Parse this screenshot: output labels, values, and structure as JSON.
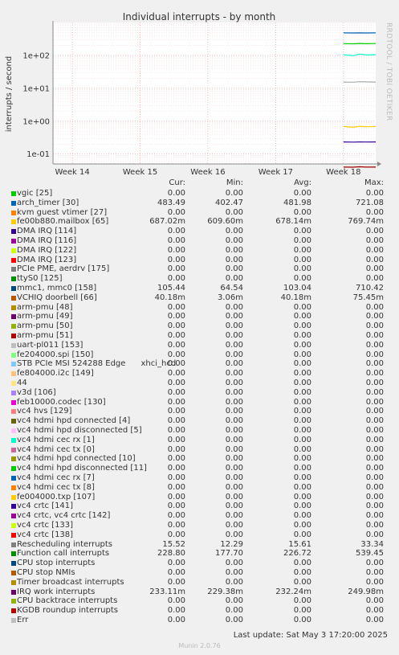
{
  "chart_data": {
    "type": "line",
    "title": "Individual interrupts - by month",
    "ylabel": "interrupts / second",
    "yscale": "log",
    "ylim": [
      0.05,
      1000
    ],
    "yticks": [
      "1e-01",
      "1e+00",
      "1e+01",
      "1e+02"
    ],
    "ytick_values": [
      0.1,
      1,
      10,
      100
    ],
    "xticks": [
      "Week 14",
      "Week 15",
      "Week 16",
      "Week 17",
      "Week 18"
    ],
    "xtick_positions": [
      0.06,
      0.27,
      0.48,
      0.69,
      0.9
    ],
    "x_range": [
      0,
      1
    ],
    "grid": true,
    "series": [
      {
        "name": "arch_timer [30]",
        "color": "#0066B3",
        "x": [
          0.9,
          0.93,
          0.95,
          0.97,
          1.0
        ],
        "values": [
          483,
          480,
          485,
          482,
          483
        ]
      },
      {
        "name": "Function call interrupts",
        "color": "#00CC00",
        "x": [
          0.9,
          0.93,
          0.95,
          0.97,
          1.0
        ],
        "values": [
          228,
          225,
          230,
          227,
          229
        ]
      },
      {
        "name": "mmc1, mmc0 [158]",
        "color": "#00FFCC",
        "x": [
          0.9,
          0.93,
          0.95,
          0.97,
          1.0
        ],
        "values": [
          105,
          98,
          110,
          103,
          105
        ]
      },
      {
        "name": "Rescheduling interrupts",
        "color": "#AAAAAA",
        "x": [
          0.9,
          0.93,
          0.95,
          0.97,
          1.0
        ],
        "values": [
          15.5,
          15.3,
          15.8,
          15.6,
          15.5
        ]
      },
      {
        "name": "fe00b880.mailbox [65]",
        "color": "#FFCC00",
        "x": [
          0.9,
          0.93,
          0.95,
          0.97,
          1.0
        ],
        "values": [
          0.687,
          0.65,
          0.7,
          0.678,
          0.687
        ]
      },
      {
        "name": "IRQ work interrupts",
        "color": "#330099",
        "x": [
          0.9,
          0.93,
          0.95,
          0.97,
          1.0
        ],
        "values": [
          0.233,
          0.231,
          0.234,
          0.232,
          0.233
        ]
      },
      {
        "name": "VCHIQ doorbell [66]",
        "color": "#990000",
        "x": [
          0.9,
          0.93,
          0.95,
          0.97,
          1.0
        ],
        "values": [
          0.0402,
          0.04,
          0.041,
          0.0402,
          0.0402
        ]
      }
    ]
  },
  "side_label": "RRDTOOL / TOBI OETIKER",
  "legend": {
    "headers": [
      "Cur:",
      "Min:",
      "Avg:",
      "Max:"
    ],
    "rows": [
      {
        "name": "vgic [25]",
        "color": "#00CC00",
        "cur": "0.00",
        "min": "0.00",
        "avg": "0.00",
        "max": "0.00"
      },
      {
        "name": "arch_timer [30]",
        "color": "#0066B3",
        "cur": "483.49",
        "min": "402.47",
        "avg": "481.98",
        "max": "721.08"
      },
      {
        "name": "kvm guest vtimer [27]",
        "color": "#FF8000",
        "cur": "0.00",
        "min": "0.00",
        "avg": "0.00",
        "max": "0.00"
      },
      {
        "name": "fe00b880.mailbox [65]",
        "color": "#FFCC00",
        "cur": "687.02m",
        "min": "609.60m",
        "avg": "678.14m",
        "max": "769.74m"
      },
      {
        "name": "DMA IRQ [114]",
        "color": "#330099",
        "cur": "0.00",
        "min": "0.00",
        "avg": "0.00",
        "max": "0.00"
      },
      {
        "name": "DMA IRQ [116]",
        "color": "#990099",
        "cur": "0.00",
        "min": "0.00",
        "avg": "0.00",
        "max": "0.00"
      },
      {
        "name": "DMA IRQ [122]",
        "color": "#CCFF00",
        "cur": "0.00",
        "min": "0.00",
        "avg": "0.00",
        "max": "0.00"
      },
      {
        "name": "DMA IRQ [123]",
        "color": "#FF0000",
        "cur": "0.00",
        "min": "0.00",
        "avg": "0.00",
        "max": "0.00"
      },
      {
        "name": "PCIe PME, aerdrv [175]",
        "color": "#808080",
        "cur": "0.00",
        "min": "0.00",
        "avg": "0.00",
        "max": "0.00"
      },
      {
        "name": "ttyS0 [125]",
        "color": "#008F00",
        "cur": "0.00",
        "min": "0.00",
        "avg": "0.00",
        "max": "0.00"
      },
      {
        "name": "mmc1, mmc0 [158]",
        "color": "#00487D",
        "cur": "105.44",
        "min": "64.54",
        "avg": "103.04",
        "max": "710.42"
      },
      {
        "name": "VCHIQ doorbell [66]",
        "color": "#B35A00",
        "cur": "40.18m",
        "min": "3.06m",
        "avg": "40.18m",
        "max": "75.45m"
      },
      {
        "name": "arm-pmu [48]",
        "color": "#B38F00",
        "cur": "0.00",
        "min": "0.00",
        "avg": "0.00",
        "max": "0.00"
      },
      {
        "name": "arm-pmu [49]",
        "color": "#6B006B",
        "cur": "0.00",
        "min": "0.00",
        "avg": "0.00",
        "max": "0.00"
      },
      {
        "name": "arm-pmu [50]",
        "color": "#8FB300",
        "cur": "0.00",
        "min": "0.00",
        "avg": "0.00",
        "max": "0.00"
      },
      {
        "name": "arm-pmu [51]",
        "color": "#B30000",
        "cur": "0.00",
        "min": "0.00",
        "avg": "0.00",
        "max": "0.00"
      },
      {
        "name": "uart-pl011 [153]",
        "color": "#BEBEBE",
        "cur": "0.00",
        "min": "0.00",
        "avg": "0.00",
        "max": "0.00"
      },
      {
        "name": "fe204000.spi [150]",
        "color": "#80FF80",
        "cur": "0.00",
        "min": "0.00",
        "avg": "0.00",
        "max": "0.00"
      },
      {
        "name": "STB PCIe MSI 524288 Edge      xhci_hcd",
        "color": "#80C9FF",
        "cur": "0.00",
        "min": "0.00",
        "avg": "0.00",
        "max": "0.00"
      },
      {
        "name": "fe804000.i2c [149]",
        "color": "#FFC080",
        "cur": "0.00",
        "min": "0.00",
        "avg": "0.00",
        "max": "0.00"
      },
      {
        "name": "44",
        "color": "#FFE680",
        "cur": "0.00",
        "min": "0.00",
        "avg": "0.00",
        "max": "0.00"
      },
      {
        "name": "v3d [106]",
        "color": "#AA80FF",
        "cur": "0.00",
        "min": "0.00",
        "avg": "0.00",
        "max": "0.00"
      },
      {
        "name": "feb10000.codec [130]",
        "color": "#EE00CC",
        "cur": "0.00",
        "min": "0.00",
        "avg": "0.00",
        "max": "0.00"
      },
      {
        "name": "vc4 hvs [129]",
        "color": "#FF8080",
        "cur": "0.00",
        "min": "0.00",
        "avg": "0.00",
        "max": "0.00"
      },
      {
        "name": "vc4 hdmi hpd connected [4]",
        "color": "#666600",
        "cur": "0.00",
        "min": "0.00",
        "avg": "0.00",
        "max": "0.00"
      },
      {
        "name": "vc4 hdmi hpd disconnected [5]",
        "color": "#FFBFFF",
        "cur": "0.00",
        "min": "0.00",
        "avg": "0.00",
        "max": "0.00"
      },
      {
        "name": "vc4 hdmi cec rx [1]",
        "color": "#00FFCC",
        "cur": "0.00",
        "min": "0.00",
        "avg": "0.00",
        "max": "0.00"
      },
      {
        "name": "vc4 hdmi cec tx [0]",
        "color": "#CC6699",
        "cur": "0.00",
        "min": "0.00",
        "avg": "0.00",
        "max": "0.00"
      },
      {
        "name": "vc4 hdmi hpd connected [10]",
        "color": "#999900",
        "cur": "0.00",
        "min": "0.00",
        "avg": "0.00",
        "max": "0.00"
      },
      {
        "name": "vc4 hdmi hpd disconnected [11]",
        "color": "#00CC00",
        "cur": "0.00",
        "min": "0.00",
        "avg": "0.00",
        "max": "0.00"
      },
      {
        "name": "vc4 hdmi cec rx [7]",
        "color": "#0066B3",
        "cur": "0.00",
        "min": "0.00",
        "avg": "0.00",
        "max": "0.00"
      },
      {
        "name": "vc4 hdmi cec tx [8]",
        "color": "#FF8000",
        "cur": "0.00",
        "min": "0.00",
        "avg": "0.00",
        "max": "0.00"
      },
      {
        "name": "fe004000.txp [107]",
        "color": "#FFCC00",
        "cur": "0.00",
        "min": "0.00",
        "avg": "0.00",
        "max": "0.00"
      },
      {
        "name": "vc4 crtc [141]",
        "color": "#330099",
        "cur": "0.00",
        "min": "0.00",
        "avg": "0.00",
        "max": "0.00"
      },
      {
        "name": "vc4 crtc, vc4 crtc [142]",
        "color": "#990099",
        "cur": "0.00",
        "min": "0.00",
        "avg": "0.00",
        "max": "0.00"
      },
      {
        "name": "vc4 crtc [133]",
        "color": "#CCFF00",
        "cur": "0.00",
        "min": "0.00",
        "avg": "0.00",
        "max": "0.00"
      },
      {
        "name": "vc4 crtc [138]",
        "color": "#FF0000",
        "cur": "0.00",
        "min": "0.00",
        "avg": "0.00",
        "max": "0.00"
      },
      {
        "name": "Rescheduling interrupts",
        "color": "#808080",
        "cur": "15.52",
        "min": "12.29",
        "avg": "15.61",
        "max": "33.34"
      },
      {
        "name": "Function call interrupts",
        "color": "#008F00",
        "cur": "228.80",
        "min": "177.70",
        "avg": "226.72",
        "max": "539.45"
      },
      {
        "name": "CPU stop interrupts",
        "color": "#00487D",
        "cur": "0.00",
        "min": "0.00",
        "avg": "0.00",
        "max": "0.00"
      },
      {
        "name": "CPU stop NMIs",
        "color": "#B35A00",
        "cur": "0.00",
        "min": "0.00",
        "avg": "0.00",
        "max": "0.00"
      },
      {
        "name": "Timer broadcast interrupts",
        "color": "#B38F00",
        "cur": "0.00",
        "min": "0.00",
        "avg": "0.00",
        "max": "0.00"
      },
      {
        "name": "IRQ work interrupts",
        "color": "#6B006B",
        "cur": "233.11m",
        "min": "229.38m",
        "avg": "232.24m",
        "max": "249.98m"
      },
      {
        "name": "CPU backtrace interrupts",
        "color": "#8FB300",
        "cur": "0.00",
        "min": "0.00",
        "avg": "0.00",
        "max": "0.00"
      },
      {
        "name": "KGDB roundup interrupts",
        "color": "#B30000",
        "cur": "0.00",
        "min": "0.00",
        "avg": "0.00",
        "max": "0.00"
      },
      {
        "name": "Err",
        "color": "#BEBEBE",
        "cur": "0.00",
        "min": "0.00",
        "avg": "0.00",
        "max": "0.00"
      }
    ]
  },
  "last_update": "Last update: Sat May  3 17:20:00 2025",
  "footer": "Munin 2.0.76"
}
